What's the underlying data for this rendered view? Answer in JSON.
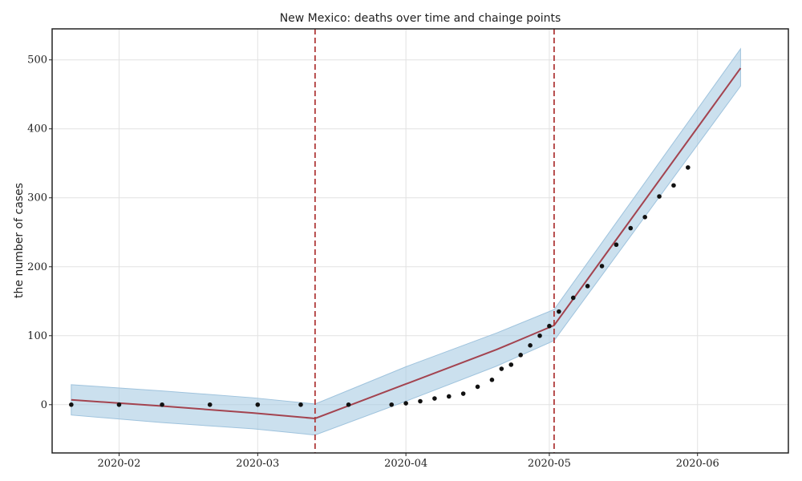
{
  "chart_data": {
    "type": "line",
    "title": "New Mexico: deaths over time and chainge points",
    "xlabel": "",
    "ylabel": "the number of cases",
    "xlim": [
      "2020-01-18",
      "2020-06-20"
    ],
    "ylim": [
      -70,
      545
    ],
    "x_ticks": [
      "2020-02",
      "2020-03",
      "2020-04",
      "2020-05",
      "2020-06"
    ],
    "y_ticks": [
      0,
      100,
      200,
      300,
      400,
      500
    ],
    "grid": true,
    "legend": "none",
    "colors": {
      "trend": "#a3434f",
      "band": "#a8cbe3",
      "observed": "#111111",
      "changepoint": "#b03a3a",
      "grid": "#e2e2e2"
    },
    "changepoints": [
      "2020-03-13",
      "2020-05-02"
    ],
    "trend": {
      "x": [
        "2020-01-22",
        "2020-02-10",
        "2020-02-29",
        "2020-03-13",
        "2020-04-01",
        "2020-04-20",
        "2020-05-02",
        "2020-06-10"
      ],
      "y": [
        7,
        -2,
        -12,
        -20,
        30,
        80,
        115,
        488
      ]
    },
    "interval": {
      "x": [
        "2020-01-22",
        "2020-02-10",
        "2020-02-29",
        "2020-03-13",
        "2020-04-01",
        "2020-04-20",
        "2020-05-02",
        "2020-06-10"
      ],
      "lower": [
        -15,
        -26,
        -35,
        -44,
        5,
        56,
        93,
        462
      ],
      "upper": [
        29,
        20,
        10,
        1,
        55,
        104,
        138,
        516
      ]
    },
    "observed": {
      "x": [
        "2020-01-22",
        "2020-02-01",
        "2020-02-10",
        "2020-02-20",
        "2020-03-01",
        "2020-03-10",
        "2020-03-20",
        "2020-03-29",
        "2020-04-01",
        "2020-04-04",
        "2020-04-07",
        "2020-04-10",
        "2020-04-13",
        "2020-04-16",
        "2020-04-19",
        "2020-04-21",
        "2020-04-23",
        "2020-04-25",
        "2020-04-27",
        "2020-04-29",
        "2020-05-01",
        "2020-05-03",
        "2020-05-06",
        "2020-05-09",
        "2020-05-12",
        "2020-05-15",
        "2020-05-18",
        "2020-05-21",
        "2020-05-24",
        "2020-05-27",
        "2020-05-30"
      ],
      "y": [
        0,
        0,
        0,
        0,
        0,
        0,
        0,
        0,
        2,
        5,
        9,
        12,
        16,
        26,
        36,
        52,
        58,
        72,
        86,
        100,
        114,
        135,
        155,
        172,
        201,
        232,
        256,
        272,
        302,
        318,
        344
      ]
    }
  }
}
